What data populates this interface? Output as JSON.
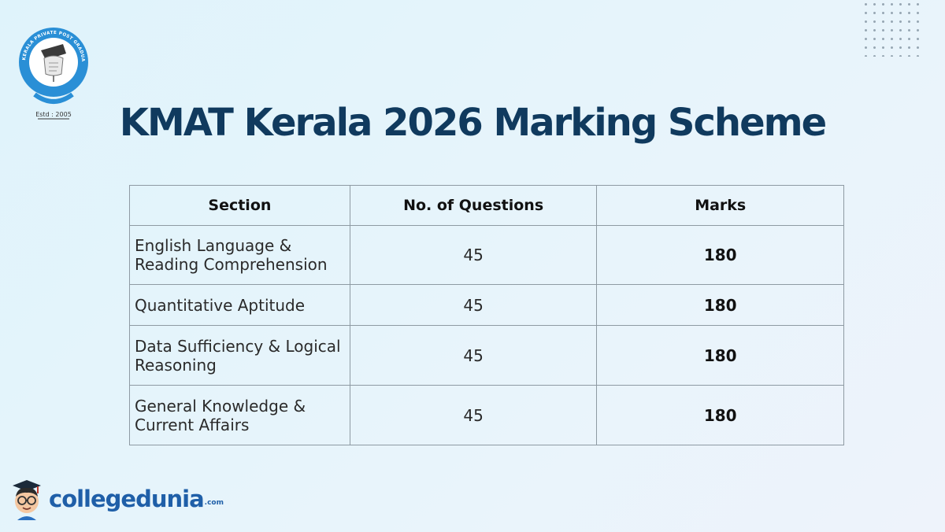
{
  "page": {
    "title": "KMAT Kerala 2026 Marking Scheme"
  },
  "seal": {
    "arc_text": "KERALA PRIVATE POST GRADUATE COLLEGES ASSOCIATION",
    "estd": "Estd : 2005"
  },
  "table": {
    "headers": [
      "Section",
      "No. of Questions",
      "Marks"
    ],
    "rows": [
      {
        "section_line1": "English Language &",
        "section_line2": "Reading Comprehension",
        "questions": "45",
        "marks": "180"
      },
      {
        "section_line1": "Quantitative Aptitude",
        "section_line2": "",
        "questions": "45",
        "marks": "180"
      },
      {
        "section_line1": "Data Sufficiency & Logical",
        "section_line2": "Reasoning",
        "questions": "45",
        "marks": "180"
      },
      {
        "section_line1": "General Knowledge &",
        "section_line2": "Current Affairs",
        "questions": "45",
        "marks": "180"
      }
    ]
  },
  "brand": {
    "name": "collegedunia",
    "suffix": ".com"
  },
  "colors": {
    "title": "#103a5e",
    "brand": "#1f5fa8",
    "seal_blue": "#2a8fd6",
    "grid": "#8e9aa3"
  },
  "icons": {
    "seal": "association-seal-logo",
    "mascot": "graduate-mascot-icon"
  }
}
